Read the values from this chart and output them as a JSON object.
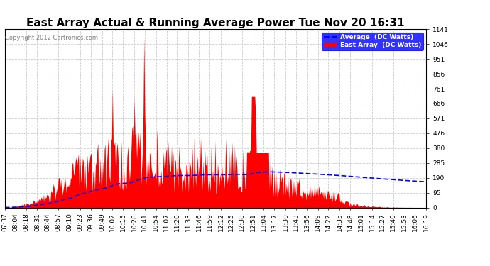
{
  "title": "East Array Actual & Running Average Power Tue Nov 20 16:31",
  "copyright": "Copyright 2012 Cartronics.com",
  "legend_labels": [
    "Average  (DC Watts)",
    "East Array  (DC Watts)"
  ],
  "ylim": [
    0.0,
    1141.2
  ],
  "yticks": [
    0.0,
    95.1,
    190.2,
    285.3,
    380.4,
    475.5,
    570.6,
    665.7,
    760.8,
    855.9,
    951.0,
    1046.1,
    1141.2
  ],
  "background_color": "#ffffff",
  "plot_bg_color": "#ffffff",
  "grid_color": "#cccccc",
  "x_labels": [
    "07:37",
    "08:04",
    "08:18",
    "08:31",
    "08:44",
    "08:57",
    "09:10",
    "09:23",
    "09:36",
    "09:49",
    "10:02",
    "10:15",
    "10:28",
    "10:41",
    "10:54",
    "11:07",
    "11:20",
    "11:33",
    "11:46",
    "11:59",
    "12:12",
    "12:25",
    "12:38",
    "12:51",
    "13:04",
    "13:17",
    "13:30",
    "13:43",
    "13:56",
    "14:09",
    "14:22",
    "14:35",
    "14:48",
    "15:01",
    "15:14",
    "15:27",
    "15:40",
    "15:53",
    "16:06",
    "16:19"
  ],
  "title_fontsize": 11,
  "axis_fontsize": 6.5,
  "tick_color": "#aaaaaa"
}
